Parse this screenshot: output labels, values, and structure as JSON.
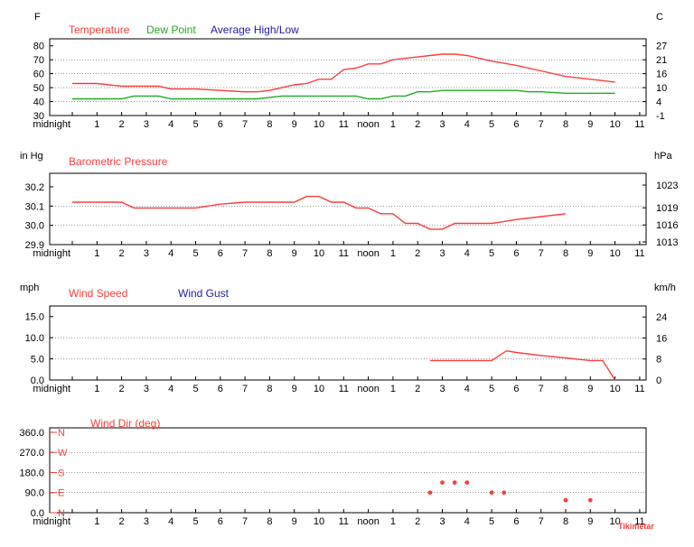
{
  "x_axis": {
    "labels": [
      "midnight",
      "1",
      "2",
      "3",
      "4",
      "5",
      "6",
      "7",
      "8",
      "9",
      "10",
      "11",
      "noon",
      "1",
      "2",
      "3",
      "4",
      "5",
      "6",
      "7",
      "8",
      "9",
      "10",
      "11"
    ],
    "labels_wind_dir": [
      "midnight",
      "1",
      "2",
      "3",
      "4",
      "5",
      "6",
      "7",
      "8",
      "9",
      "10",
      "11",
      "noon",
      "1",
      "2",
      "3",
      "4",
      "5",
      "6",
      "7",
      "8",
      "9",
      "10",
      "11"
    ]
  },
  "watermark": "Tikimetar",
  "chart_data": [
    {
      "type": "line",
      "left_unit": "F",
      "right_unit": "C",
      "legend": [
        "Temperature",
        "Dew Point",
        "Average High/Low"
      ],
      "ylim": [
        30,
        85
      ],
      "left_ticks": [
        "80",
        "70",
        "60",
        "50",
        "40",
        "30"
      ],
      "left_tick_values": [
        80,
        70,
        60,
        50,
        40,
        30
      ],
      "right_ticks": [
        "27",
        "21",
        "16",
        "10",
        "4",
        "-1"
      ],
      "right_tick_values": [
        80,
        70,
        60,
        50,
        40,
        30
      ],
      "colors": {
        "temperature": "#ff3b3b",
        "dew_point": "#22aa22",
        "average": "#2222aa"
      },
      "series": [
        {
          "name": "Temperature",
          "x": [
            0,
            0.3,
            1,
            2,
            3,
            3.5,
            4,
            5,
            6,
            7,
            7.5,
            8,
            8.5,
            9,
            9.5,
            10,
            10.5,
            11,
            11.5,
            12,
            12.5,
            13,
            13.5,
            14,
            14.5,
            15,
            15.5,
            16,
            17,
            18,
            19,
            20,
            21,
            22
          ],
          "values": [
            53,
            53,
            53,
            51,
            51,
            51,
            49,
            49,
            48,
            47,
            47,
            48,
            50,
            52,
            53,
            56,
            56,
            63,
            64,
            67,
            67,
            70,
            71,
            72,
            73,
            74,
            74,
            73,
            69,
            66,
            62,
            58,
            56,
            54
          ]
        },
        {
          "name": "Dew Point",
          "x": [
            0,
            0.3,
            1,
            2,
            2.5,
            3,
            3.5,
            4,
            5,
            6,
            7,
            7.5,
            8,
            8.5,
            9,
            10,
            11,
            11.5,
            12,
            12.5,
            13,
            13.5,
            14,
            14.5,
            15,
            16,
            17,
            18,
            18.5,
            19,
            20,
            21,
            22
          ],
          "values": [
            42,
            42,
            42,
            42,
            44,
            44,
            44,
            42,
            42,
            42,
            42,
            42,
            43,
            44,
            44,
            44,
            44,
            44,
            42,
            42,
            44,
            44,
            47,
            47,
            48,
            48,
            48,
            48,
            47,
            47,
            46,
            46,
            46
          ]
        }
      ]
    },
    {
      "type": "line",
      "left_unit": "in Hg",
      "right_unit": "hPa",
      "legend": [
        "Barometric Pressure"
      ],
      "ylim": [
        29.9,
        30.27
      ],
      "left_ticks": [
        "30.2",
        "30.1",
        "30.0",
        "29.9"
      ],
      "left_tick_values": [
        30.2,
        30.1,
        30.0,
        29.9
      ],
      "right_ticks": [
        "1023",
        "1019",
        "1016",
        "1013"
      ],
      "right_tick_values": [
        30.209,
        30.091,
        30.002,
        29.914
      ],
      "colors": {
        "pressure": "#ff3b3b"
      },
      "series": [
        {
          "name": "Barometric Pressure",
          "x": [
            0,
            0.3,
            2,
            2.5,
            3,
            4,
            5,
            6,
            7,
            8,
            9,
            9.5,
            10,
            10.5,
            11,
            11.5,
            12,
            12.5,
            13,
            13.5,
            14,
            14.5,
            15,
            15.5,
            16,
            17,
            17.5,
            18,
            19,
            20
          ],
          "values": [
            30.12,
            30.12,
            30.12,
            30.09,
            30.09,
            30.09,
            30.09,
            30.11,
            30.12,
            30.12,
            30.12,
            30.15,
            30.15,
            30.12,
            30.12,
            30.09,
            30.09,
            30.06,
            30.06,
            30.01,
            30.01,
            29.98,
            29.98,
            30.01,
            30.01,
            30.01,
            30.02,
            30.03,
            30.045,
            30.06
          ]
        }
      ]
    },
    {
      "type": "line",
      "left_unit": "mph",
      "right_unit": "km/h",
      "legend": [
        "Wind Speed",
        "Wind Gust"
      ],
      "ylim": [
        0,
        17.5
      ],
      "left_ticks": [
        "15.0",
        "10.0",
        "5.0",
        "0.0"
      ],
      "left_tick_values": [
        15,
        10,
        5,
        0
      ],
      "right_ticks": [
        "24",
        "16",
        "8",
        "0"
      ],
      "right_tick_values": [
        14.9,
        9.94,
        4.97,
        0
      ],
      "colors": {
        "speed": "#ff3b3b",
        "gust": "#2222aa"
      },
      "series": [
        {
          "name": "Wind Speed",
          "x": [
            14.5,
            15,
            16,
            17,
            17.6,
            18,
            19,
            20,
            21,
            21.5,
            22
          ],
          "values": [
            4.6,
            4.6,
            4.6,
            4.6,
            6.9,
            6.5,
            5.8,
            5.2,
            4.6,
            4.6,
            0
          ]
        }
      ]
    },
    {
      "type": "scatter",
      "left_unit": "",
      "legend": [
        "Wind Dir (deg)"
      ],
      "ylim": [
        0,
        380
      ],
      "left_ticks": [
        "360.0",
        "270.0",
        "180.0",
        "90.0",
        "0.0"
      ],
      "left_tick_values": [
        360,
        270,
        180,
        90,
        0
      ],
      "compass_labels": [
        "N",
        "W",
        "S",
        "E",
        "N"
      ],
      "compass_values": [
        360,
        270,
        180,
        90,
        0
      ],
      "colors": {
        "direction": "#ff3b3b"
      },
      "series": [
        {
          "name": "Wind Dir (deg)",
          "x": [
            14.5,
            15,
            15.5,
            16,
            17,
            17.5,
            20,
            21
          ],
          "values": [
            90,
            135,
            135,
            135,
            90,
            90,
            56,
            56
          ]
        }
      ]
    }
  ]
}
